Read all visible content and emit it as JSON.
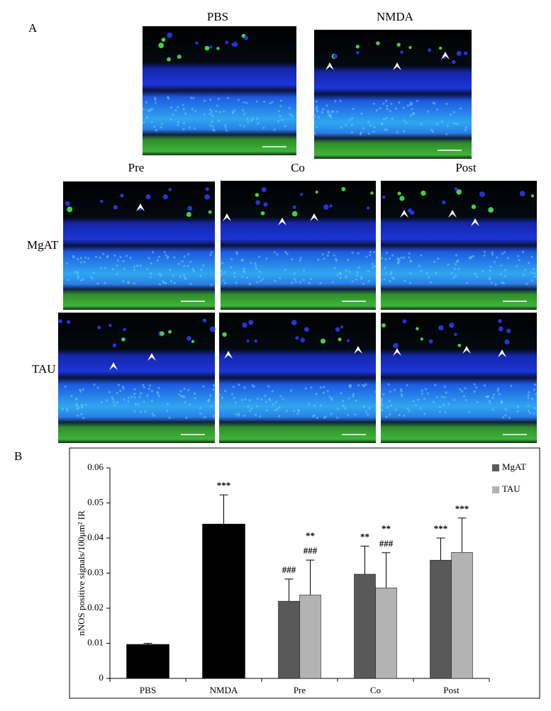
{
  "panel_a": {
    "label": "A",
    "columns_top": [
      "PBS",
      "NMDA"
    ],
    "columns": [
      "Pre",
      "Co",
      "Post"
    ],
    "rows": [
      "MgAT",
      "TAU"
    ]
  },
  "panel_b": {
    "label": "B"
  },
  "chart_data": {
    "type": "bar",
    "y_label": "nNOS positive  signals/100μm² IR",
    "categories": [
      "PBS",
      "NMDA",
      "Pre",
      "Co",
      "Post"
    ],
    "series": [
      {
        "color": "#000000",
        "values": [
          0.0097,
          0.044,
          null,
          null,
          null
        ],
        "errors": [
          0.0003,
          0.0083,
          null,
          null,
          null
        ],
        "annotations": [
          null,
          [
            "***"
          ],
          null,
          null,
          null
        ]
      },
      {
        "name": "MgAT",
        "color": "#595959",
        "values": [
          null,
          null,
          0.022,
          0.0297,
          0.0337
        ],
        "errors": [
          null,
          null,
          0.0063,
          0.008,
          0.0063
        ],
        "annotations": [
          null,
          null,
          [
            "###"
          ],
          [
            "**"
          ],
          [
            "***"
          ]
        ]
      },
      {
        "name": "TAU",
        "color": "#b3b3b3",
        "values": [
          null,
          null,
          0.0238,
          0.0258,
          0.0359
        ],
        "errors": [
          null,
          null,
          0.0099,
          0.01,
          0.0098
        ],
        "annotations": [
          null,
          null,
          [
            "**",
            "###"
          ],
          [
            "**",
            "###"
          ],
          [
            "***"
          ]
        ]
      }
    ],
    "ylim": [
      0,
      0.06
    ],
    "yticks": [
      0,
      0.01,
      0.02,
      0.03,
      0.04,
      0.05,
      0.06
    ],
    "legend": "top-right"
  }
}
